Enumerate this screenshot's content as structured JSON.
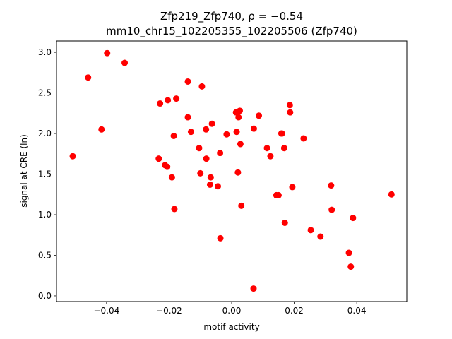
{
  "chart_data": {
    "type": "scatter",
    "title_line1": "Zfp219_Zfp740, ρ = −0.54",
    "title_line2": "mm10_chr15_102205355_102205506 (Zfp740)",
    "xlabel": "motif activity",
    "ylabel": "signal at CRE (ln)",
    "xlim": [
      -0.056,
      0.056
    ],
    "ylim": [
      -0.07,
      3.14
    ],
    "xticks": [
      -0.04,
      -0.02,
      0.0,
      0.02,
      0.04
    ],
    "xtick_labels": [
      "−0.04",
      "−0.02",
      "0.00",
      "0.02",
      "0.04"
    ],
    "yticks": [
      0.0,
      0.5,
      1.0,
      1.5,
      2.0,
      2.5,
      3.0
    ],
    "ytick_labels": [
      "0.0",
      "0.5",
      "1.0",
      "1.5",
      "2.0",
      "2.5",
      "3.0"
    ],
    "grid": false,
    "marker_color": "#ff0000",
    "points": [
      {
        "x": -0.0508,
        "y": 1.72
      },
      {
        "x": -0.0459,
        "y": 2.69
      },
      {
        "x": -0.0398,
        "y": 2.99
      },
      {
        "x": -0.0416,
        "y": 2.05
      },
      {
        "x": -0.0342,
        "y": 2.87
      },
      {
        "x": -0.0233,
        "y": 1.69
      },
      {
        "x": -0.0229,
        "y": 2.37
      },
      {
        "x": -0.0213,
        "y": 1.61
      },
      {
        "x": -0.0206,
        "y": 1.59
      },
      {
        "x": -0.0204,
        "y": 2.41
      },
      {
        "x": -0.0191,
        "y": 1.46
      },
      {
        "x": -0.0185,
        "y": 1.97
      },
      {
        "x": -0.0183,
        "y": 1.07
      },
      {
        "x": -0.0177,
        "y": 2.43
      },
      {
        "x": -0.014,
        "y": 2.64
      },
      {
        "x": -0.014,
        "y": 2.2
      },
      {
        "x": -0.013,
        "y": 2.02
      },
      {
        "x": -0.0104,
        "y": 1.82
      },
      {
        "x": -0.01,
        "y": 1.51
      },
      {
        "x": -0.0095,
        "y": 2.58
      },
      {
        "x": -0.0082,
        "y": 2.05
      },
      {
        "x": -0.0081,
        "y": 1.69
      },
      {
        "x": -0.0069,
        "y": 1.37
      },
      {
        "x": -0.0067,
        "y": 1.46
      },
      {
        "x": -0.0063,
        "y": 2.12
      },
      {
        "x": -0.0044,
        "y": 1.35
      },
      {
        "x": -0.0037,
        "y": 1.76
      },
      {
        "x": -0.0036,
        "y": 0.71
      },
      {
        "x": -0.0016,
        "y": 1.99
      },
      {
        "x": 0.0014,
        "y": 2.26
      },
      {
        "x": 0.0016,
        "y": 2.02
      },
      {
        "x": 0.002,
        "y": 1.52
      },
      {
        "x": 0.0022,
        "y": 2.2
      },
      {
        "x": 0.0026,
        "y": 2.28
      },
      {
        "x": 0.0028,
        "y": 1.87
      },
      {
        "x": 0.0031,
        "y": 1.11
      },
      {
        "x": 0.007,
        "y": 0.09
      },
      {
        "x": 0.0071,
        "y": 2.06
      },
      {
        "x": 0.0087,
        "y": 2.22
      },
      {
        "x": 0.0113,
        "y": 1.82
      },
      {
        "x": 0.0124,
        "y": 1.72
      },
      {
        "x": 0.0143,
        "y": 1.24
      },
      {
        "x": 0.015,
        "y": 1.24
      },
      {
        "x": 0.0159,
        "y": 2.0
      },
      {
        "x": 0.0161,
        "y": 2.0
      },
      {
        "x": 0.0168,
        "y": 1.82
      },
      {
        "x": 0.017,
        "y": 0.9
      },
      {
        "x": 0.0186,
        "y": 2.35
      },
      {
        "x": 0.0187,
        "y": 2.26
      },
      {
        "x": 0.0194,
        "y": 1.34
      },
      {
        "x": 0.023,
        "y": 1.94
      },
      {
        "x": 0.0253,
        "y": 0.81
      },
      {
        "x": 0.0284,
        "y": 0.73
      },
      {
        "x": 0.0318,
        "y": 1.36
      },
      {
        "x": 0.032,
        "y": 1.06
      },
      {
        "x": 0.0375,
        "y": 0.53
      },
      {
        "x": 0.0381,
        "y": 0.36
      },
      {
        "x": 0.0388,
        "y": 0.96
      },
      {
        "x": 0.0511,
        "y": 1.25
      }
    ]
  }
}
